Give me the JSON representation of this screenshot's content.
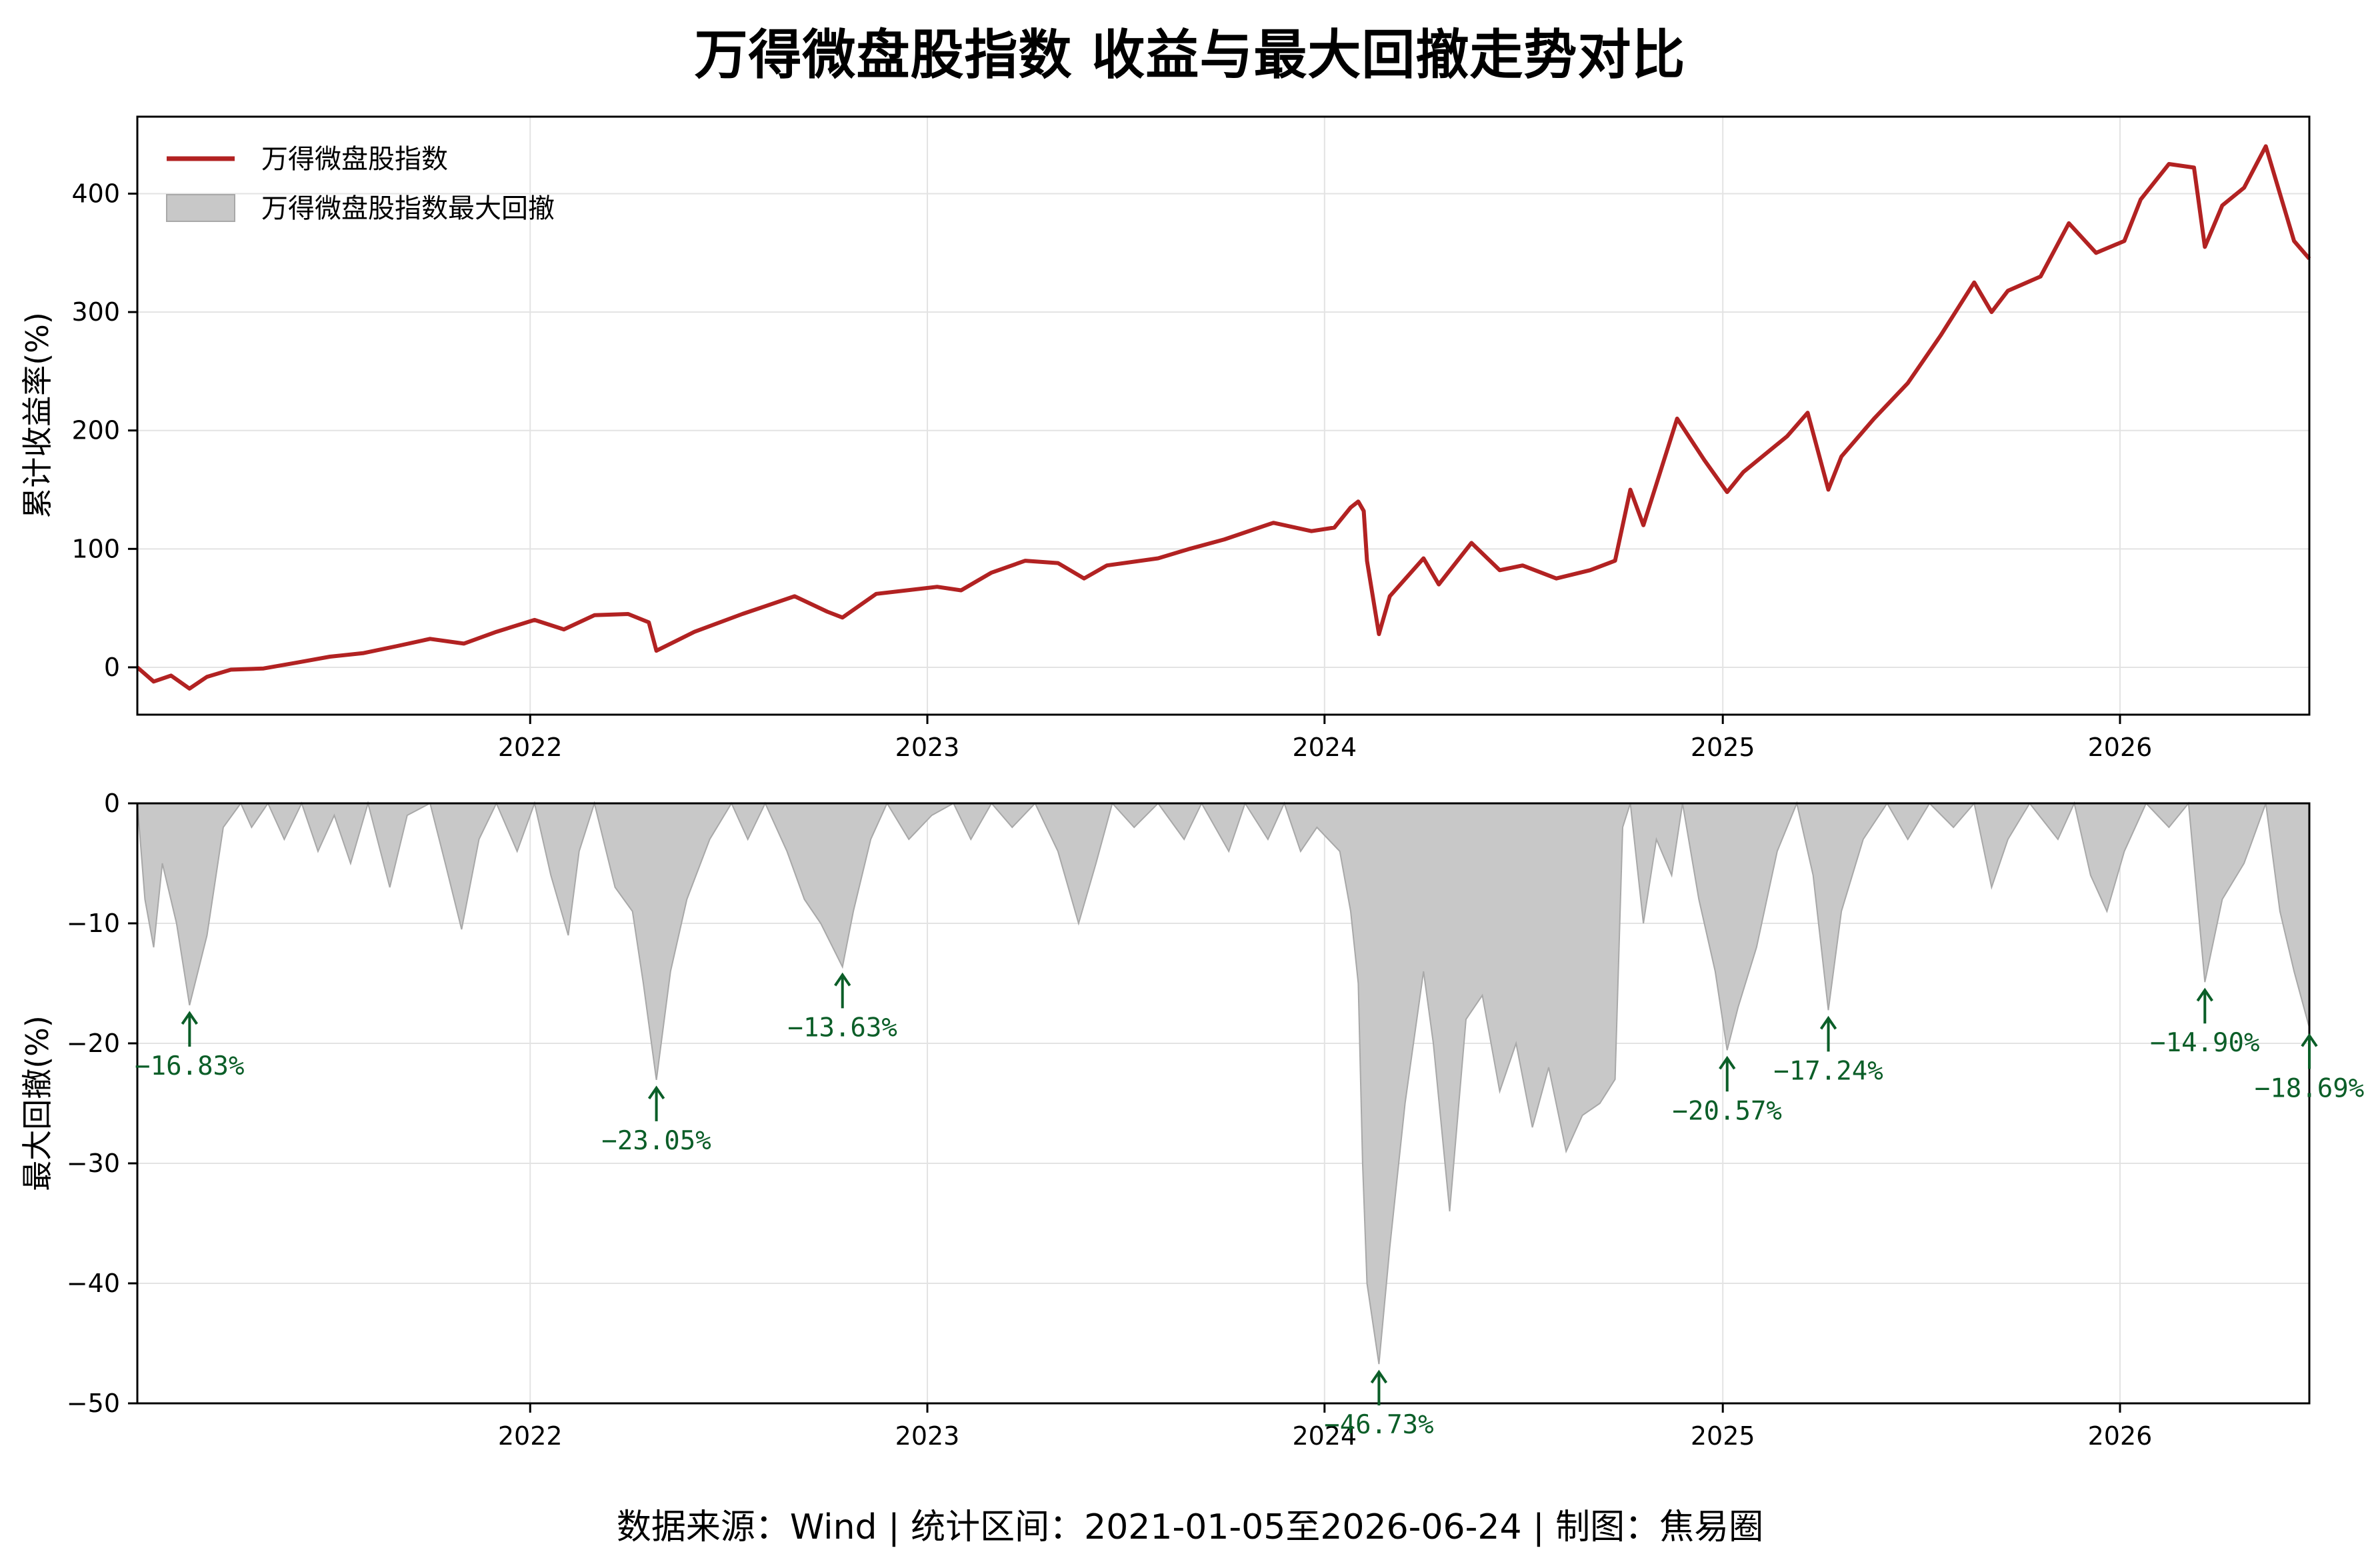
{
  "title": "万得微盘股指数 收益与最大回撤走势对比",
  "footer": "数据来源：Wind | 统计区间：2021-01-05至2026-06-24 | 制图：焦易圈",
  "colors": {
    "line": "#b22222",
    "drawdown_fill": "#c8c8c8",
    "drawdown_edge": "#a8a8a8",
    "annotation": "#0b5e28",
    "grid": "#e3e3e3"
  },
  "chart_data": [
    {
      "type": "line",
      "ylabel": "累计收益率(%)",
      "xlim": [
        "2021-01-05",
        "2026-06-24"
      ],
      "ylim": [
        -40,
        465
      ],
      "yticks": [
        0,
        100,
        200,
        300,
        400
      ],
      "xticks": [
        {
          "date": "2022-01-01",
          "label": "2022"
        },
        {
          "date": "2023-01-01",
          "label": "2023"
        },
        {
          "date": "2024-01-01",
          "label": "2024"
        },
        {
          "date": "2025-01-01",
          "label": "2025"
        },
        {
          "date": "2026-01-01",
          "label": "2026"
        }
      ],
      "grid": true,
      "legend": "top-left",
      "legend_entries": [
        "万得微盘股指数",
        "万得微盘股指数最大回撤"
      ],
      "series": [
        {
          "name": "万得微盘股指数",
          "points": [
            [
              "2021-01-05",
              0
            ],
            [
              "2021-01-20",
              -12
            ],
            [
              "2021-02-05",
              -7
            ],
            [
              "2021-02-22",
              -18
            ],
            [
              "2021-03-10",
              -8
            ],
            [
              "2021-04-01",
              -2
            ],
            [
              "2021-05-01",
              -1
            ],
            [
              "2021-06-01",
              4
            ],
            [
              "2021-07-01",
              9
            ],
            [
              "2021-08-01",
              12
            ],
            [
              "2021-09-01",
              18
            ],
            [
              "2021-10-01",
              24
            ],
            [
              "2021-11-01",
              20
            ],
            [
              "2021-12-01",
              30
            ],
            [
              "2022-01-05",
              40
            ],
            [
              "2022-02-01",
              32
            ],
            [
              "2022-03-01",
              44
            ],
            [
              "2022-04-01",
              45
            ],
            [
              "2022-04-20",
              38
            ],
            [
              "2022-04-27",
              14
            ],
            [
              "2022-06-01",
              30
            ],
            [
              "2022-07-15",
              45
            ],
            [
              "2022-09-01",
              60
            ],
            [
              "2022-10-01",
              47
            ],
            [
              "2022-10-15",
              42
            ],
            [
              "2022-11-15",
              62
            ],
            [
              "2023-01-10",
              68
            ],
            [
              "2023-02-01",
              65
            ],
            [
              "2023-03-01",
              80
            ],
            [
              "2023-04-01",
              90
            ],
            [
              "2023-05-01",
              88
            ],
            [
              "2023-05-25",
              75
            ],
            [
              "2023-06-15",
              86
            ],
            [
              "2023-08-01",
              92
            ],
            [
              "2023-08-30",
              100
            ],
            [
              "2023-10-01",
              108
            ],
            [
              "2023-11-15",
              122
            ],
            [
              "2023-12-20",
              115
            ],
            [
              "2024-01-10",
              118
            ],
            [
              "2024-01-25",
              135
            ],
            [
              "2024-02-01",
              140
            ],
            [
              "2024-02-06",
              132
            ],
            [
              "2024-02-09",
              90
            ],
            [
              "2024-02-20",
              28
            ],
            [
              "2024-03-01",
              60
            ],
            [
              "2024-04-01",
              92
            ],
            [
              "2024-04-15",
              70
            ],
            [
              "2024-05-15",
              105
            ],
            [
              "2024-06-10",
              82
            ],
            [
              "2024-07-01",
              86
            ],
            [
              "2024-08-01",
              75
            ],
            [
              "2024-09-01",
              82
            ],
            [
              "2024-09-24",
              90
            ],
            [
              "2024-10-08",
              150
            ],
            [
              "2024-10-20",
              120
            ],
            [
              "2024-11-20",
              210
            ],
            [
              "2024-12-15",
              175
            ],
            [
              "2025-01-05",
              148
            ],
            [
              "2025-01-20",
              165
            ],
            [
              "2025-03-01",
              195
            ],
            [
              "2025-03-20",
              215
            ],
            [
              "2025-04-08",
              150
            ],
            [
              "2025-04-20",
              178
            ],
            [
              "2025-05-20",
              210
            ],
            [
              "2025-06-20",
              240
            ],
            [
              "2025-07-20",
              280
            ],
            [
              "2025-08-20",
              325
            ],
            [
              "2025-09-05",
              300
            ],
            [
              "2025-09-20",
              318
            ],
            [
              "2025-10-20",
              330
            ],
            [
              "2025-11-15",
              375
            ],
            [
              "2025-12-10",
              350
            ],
            [
              "2026-01-05",
              360
            ],
            [
              "2026-01-20",
              395
            ],
            [
              "2026-02-15",
              425
            ],
            [
              "2026-03-10",
              422
            ],
            [
              "2026-03-20",
              355
            ],
            [
              "2026-04-05",
              390
            ],
            [
              "2026-04-25",
              405
            ],
            [
              "2026-05-15",
              440
            ],
            [
              "2026-05-28",
              400
            ],
            [
              "2026-06-10",
              360
            ],
            [
              "2026-06-24",
              345
            ]
          ]
        }
      ]
    },
    {
      "type": "area",
      "ylabel": "最大回撤(%)",
      "xlim": [
        "2021-01-05",
        "2026-06-24"
      ],
      "ylim": [
        -50,
        0
      ],
      "yticks": [
        0,
        -10,
        -20,
        -30,
        -40,
        -50
      ],
      "ytick_labels": [
        "0",
        "−10",
        "−20",
        "−30",
        "−40",
        "−50"
      ],
      "xticks": [
        {
          "date": "2022-01-01",
          "label": "2022"
        },
        {
          "date": "2023-01-01",
          "label": "2023"
        },
        {
          "date": "2024-01-01",
          "label": "2024"
        },
        {
          "date": "2025-01-01",
          "label": "2025"
        },
        {
          "date": "2026-01-01",
          "label": "2026"
        }
      ],
      "grid": true,
      "series": [
        {
          "name": "万得微盘股指数最大回撤",
          "points": [
            [
              "2021-01-05",
              0
            ],
            [
              "2021-01-12",
              -8
            ],
            [
              "2021-01-20",
              -12
            ],
            [
              "2021-01-28",
              -5
            ],
            [
              "2021-02-10",
              -10
            ],
            [
              "2021-02-22",
              -16.83
            ],
            [
              "2021-03-10",
              -11
            ],
            [
              "2021-03-25",
              -2
            ],
            [
              "2021-04-10",
              0
            ],
            [
              "2021-04-20",
              -2
            ],
            [
              "2021-05-05",
              0
            ],
            [
              "2021-05-20",
              -3
            ],
            [
              "2021-06-05",
              0
            ],
            [
              "2021-06-20",
              -4
            ],
            [
              "2021-07-05",
              -1
            ],
            [
              "2021-07-20",
              -5
            ],
            [
              "2021-08-05",
              0
            ],
            [
              "2021-08-25",
              -7
            ],
            [
              "2021-09-10",
              -1
            ],
            [
              "2021-10-01",
              0
            ],
            [
              "2021-10-15",
              -5
            ],
            [
              "2021-10-30",
              -10.5
            ],
            [
              "2021-11-15",
              -3
            ],
            [
              "2021-12-01",
              0
            ],
            [
              "2021-12-20",
              -4
            ],
            [
              "2022-01-05",
              0
            ],
            [
              "2022-01-20",
              -6
            ],
            [
              "2022-02-05",
              -11
            ],
            [
              "2022-02-15",
              -4
            ],
            [
              "2022-03-01",
              0
            ],
            [
              "2022-03-20",
              -7
            ],
            [
              "2022-04-05",
              -9
            ],
            [
              "2022-04-15",
              -15
            ],
            [
              "2022-04-27",
              -23.05
            ],
            [
              "2022-05-10",
              -14
            ],
            [
              "2022-05-25",
              -8
            ],
            [
              "2022-06-15",
              -3
            ],
            [
              "2022-07-05",
              0
            ],
            [
              "2022-07-20",
              -3
            ],
            [
              "2022-08-05",
              0
            ],
            [
              "2022-08-25",
              -4
            ],
            [
              "2022-09-10",
              -8
            ],
            [
              "2022-09-25",
              -10
            ],
            [
              "2022-10-15",
              -13.63
            ],
            [
              "2022-10-25",
              -9
            ],
            [
              "2022-11-10",
              -3
            ],
            [
              "2022-11-25",
              0
            ],
            [
              "2022-12-15",
              -3
            ],
            [
              "2023-01-05",
              -1
            ],
            [
              "2023-01-25",
              0
            ],
            [
              "2023-02-10",
              -3
            ],
            [
              "2023-03-01",
              0
            ],
            [
              "2023-03-20",
              -2
            ],
            [
              "2023-04-10",
              0
            ],
            [
              "2023-05-01",
              -4
            ],
            [
              "2023-05-20",
              -10
            ],
            [
              "2023-06-05",
              -5
            ],
            [
              "2023-06-20",
              0
            ],
            [
              "2023-07-10",
              -2
            ],
            [
              "2023-08-01",
              0
            ],
            [
              "2023-08-25",
              -3
            ],
            [
              "2023-09-10",
              0
            ],
            [
              "2023-10-05",
              -4
            ],
            [
              "2023-10-20",
              0
            ],
            [
              "2023-11-10",
              -3
            ],
            [
              "2023-11-25",
              0
            ],
            [
              "2023-12-10",
              -4
            ],
            [
              "2023-12-25",
              -2
            ],
            [
              "2024-01-15",
              -4
            ],
            [
              "2024-01-25",
              -9
            ],
            [
              "2024-02-01",
              -15
            ],
            [
              "2024-02-05",
              -30
            ],
            [
              "2024-02-09",
              -40
            ],
            [
              "2024-02-20",
              -46.73
            ],
            [
              "2024-03-01",
              -37
            ],
            [
              "2024-03-15",
              -25
            ],
            [
              "2024-04-01",
              -14
            ],
            [
              "2024-04-10",
              -20
            ],
            [
              "2024-04-25",
              -34
            ],
            [
              "2024-05-10",
              -18
            ],
            [
              "2024-05-25",
              -16
            ],
            [
              "2024-06-10",
              -24
            ],
            [
              "2024-06-25",
              -20
            ],
            [
              "2024-07-10",
              -27
            ],
            [
              "2024-07-25",
              -22
            ],
            [
              "2024-08-10",
              -29
            ],
            [
              "2024-08-25",
              -26
            ],
            [
              "2024-09-10",
              -25
            ],
            [
              "2024-09-24",
              -23
            ],
            [
              "2024-10-01",
              -2
            ],
            [
              "2024-10-08",
              0
            ],
            [
              "2024-10-20",
              -10
            ],
            [
              "2024-11-01",
              -3
            ],
            [
              "2024-11-15",
              -6
            ],
            [
              "2024-11-25",
              0
            ],
            [
              "2024-12-10",
              -8
            ],
            [
              "2024-12-25",
              -14
            ],
            [
              "2025-01-05",
              -20.57
            ],
            [
              "2025-01-15",
              -17
            ],
            [
              "2025-02-01",
              -12
            ],
            [
              "2025-02-20",
              -4
            ],
            [
              "2025-03-10",
              0
            ],
            [
              "2025-03-25",
              -6
            ],
            [
              "2025-04-08",
              -17.24
            ],
            [
              "2025-04-20",
              -9
            ],
            [
              "2025-05-10",
              -3
            ],
            [
              "2025-06-01",
              0
            ],
            [
              "2025-06-20",
              -3
            ],
            [
              "2025-07-10",
              0
            ],
            [
              "2025-08-01",
              -2
            ],
            [
              "2025-08-20",
              0
            ],
            [
              "2025-09-05",
              -7
            ],
            [
              "2025-09-20",
              -3
            ],
            [
              "2025-10-10",
              0
            ],
            [
              "2025-11-05",
              -3
            ],
            [
              "2025-11-20",
              0
            ],
            [
              "2025-12-05",
              -6
            ],
            [
              "2025-12-20",
              -9
            ],
            [
              "2026-01-05",
              -4
            ],
            [
              "2026-01-25",
              0
            ],
            [
              "2026-02-15",
              -2
            ],
            [
              "2026-03-05",
              0
            ],
            [
              "2026-03-20",
              -14.9
            ],
            [
              "2026-04-05",
              -8
            ],
            [
              "2026-04-25",
              -5
            ],
            [
              "2026-05-15",
              0
            ],
            [
              "2026-05-28",
              -9
            ],
            [
              "2026-06-10",
              -14
            ],
            [
              "2026-06-24",
              -18.69
            ]
          ]
        }
      ],
      "annotations": [
        {
          "date": "2021-02-22",
          "value": -16.83,
          "label": "−16.83%"
        },
        {
          "date": "2022-04-27",
          "value": -23.05,
          "label": "−23.05%"
        },
        {
          "date": "2022-10-15",
          "value": -13.63,
          "label": "−13.63%"
        },
        {
          "date": "2024-02-20",
          "value": -46.73,
          "label": "−46.73%"
        },
        {
          "date": "2025-01-05",
          "value": -20.57,
          "label": "−20.57%"
        },
        {
          "date": "2025-04-08",
          "value": -17.24,
          "label": "−17.24%"
        },
        {
          "date": "2026-03-20",
          "value": -14.9,
          "label": "−14.90%"
        },
        {
          "date": "2026-06-24",
          "value": -18.69,
          "label": "−18.69%"
        }
      ]
    }
  ]
}
